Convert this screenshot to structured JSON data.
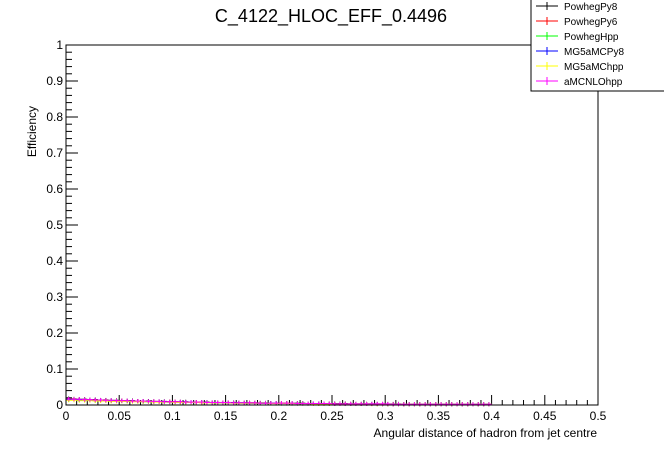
{
  "chart_data": {
    "type": "line",
    "title": "C_4122_HLOC_EFF_0.4496",
    "xlabel": "Angular distance of hadron from jet centre",
    "ylabel": "Efficiency",
    "xlim": [
      0,
      0.5
    ],
    "ylim": [
      0,
      1
    ],
    "x_ticks": [
      "0",
      "0.05",
      "0.1",
      "0.15",
      "0.2",
      "0.25",
      "0.3",
      "0.35",
      "0.4",
      "0.45",
      "0.5"
    ],
    "y_ticks": [
      "0",
      "0.1",
      "0.2",
      "0.3",
      "0.4",
      "0.5",
      "0.6",
      "0.7",
      "0.8",
      "0.9",
      "1"
    ],
    "grid": false,
    "legend_position": "top-right",
    "x": [
      0.0025,
      0.0075,
      0.0125,
      0.0175,
      0.0225,
      0.0275,
      0.0325,
      0.0375,
      0.0425,
      0.0475,
      0.0525,
      0.0575,
      0.0625,
      0.0675,
      0.0725,
      0.0775,
      0.0825,
      0.0875,
      0.0925,
      0.0975,
      0.1025,
      0.1075,
      0.1125,
      0.1175,
      0.1225,
      0.1275,
      0.1325,
      0.1375,
      0.1425,
      0.1475,
      0.1525,
      0.1575,
      0.1625,
      0.1675,
      0.1725,
      0.1775,
      0.1825,
      0.1875,
      0.1925,
      0.1975,
      0.2025,
      0.2075,
      0.2125,
      0.2175,
      0.2225,
      0.2275,
      0.2325,
      0.2375,
      0.2425,
      0.2475,
      0.2525,
      0.2575,
      0.2625,
      0.2675,
      0.2725,
      0.2775,
      0.2825,
      0.2875,
      0.2925,
      0.2975,
      0.3025,
      0.3075,
      0.3125,
      0.3175,
      0.3225,
      0.3275,
      0.3325,
      0.3375,
      0.3425,
      0.3475,
      0.3525,
      0.3575,
      0.3625,
      0.3675,
      0.3725,
      0.3775,
      0.3825,
      0.3875,
      0.3925,
      0.3975
    ],
    "series": [
      {
        "name": "PowhegPy8",
        "color": "#000000",
        "values": [
          0.018,
          0.017,
          0.016,
          0.016,
          0.015,
          0.015,
          0.014,
          0.014,
          0.013,
          0.013,
          0.012,
          0.012,
          0.012,
          0.011,
          0.011,
          0.011,
          0.01,
          0.01,
          0.01,
          0.009,
          0.009,
          0.009,
          0.009,
          0.008,
          0.008,
          0.008,
          0.008,
          0.007,
          0.007,
          0.007,
          0.007,
          0.007,
          0.006,
          0.006,
          0.006,
          0.006,
          0.006,
          0.006,
          0.005,
          0.005,
          0.005,
          0.005,
          0.005,
          0.005,
          0.005,
          0.004,
          0.004,
          0.004,
          0.004,
          0.004,
          0.004,
          0.004,
          0.004,
          0.003,
          0.003,
          0.003,
          0.003,
          0.003,
          0.003,
          0.003,
          0.003,
          0.003,
          0.003,
          0.002,
          0.002,
          0.002,
          0.002,
          0.002,
          0.002,
          0.002,
          0.002,
          0.002,
          0.002,
          0.002,
          0.002,
          0.002,
          0.002,
          0.002,
          0.002,
          0.002
        ]
      },
      {
        "name": "PowhegPy6",
        "color": "#ff0000",
        "values": [
          0.016,
          0.016,
          0.015,
          0.015,
          0.014,
          0.014,
          0.013,
          0.013,
          0.012,
          0.012,
          0.012,
          0.011,
          0.011,
          0.011,
          0.01,
          0.01,
          0.01,
          0.009,
          0.009,
          0.009,
          0.009,
          0.008,
          0.008,
          0.008,
          0.008,
          0.007,
          0.007,
          0.007,
          0.007,
          0.007,
          0.006,
          0.006,
          0.006,
          0.006,
          0.006,
          0.006,
          0.005,
          0.005,
          0.005,
          0.005,
          0.005,
          0.005,
          0.004,
          0.004,
          0.004,
          0.004,
          0.004,
          0.004,
          0.004,
          0.004,
          0.003,
          0.003,
          0.003,
          0.003,
          0.003,
          0.003,
          0.003,
          0.003,
          0.003,
          0.003,
          0.002,
          0.002,
          0.002,
          0.002,
          0.002,
          0.002,
          0.002,
          0.002,
          0.002,
          0.002,
          0.002,
          0.002,
          0.002,
          0.002,
          0.002,
          0.002,
          0.002,
          0.002,
          0.002,
          0.002
        ]
      },
      {
        "name": "PowhegHpp",
        "color": "#00ff00",
        "values": [
          0.014,
          0.014,
          0.013,
          0.013,
          0.013,
          0.012,
          0.012,
          0.012,
          0.011,
          0.011,
          0.011,
          0.01,
          0.01,
          0.01,
          0.009,
          0.009,
          0.009,
          0.009,
          0.008,
          0.008,
          0.008,
          0.008,
          0.007,
          0.007,
          0.007,
          0.007,
          0.007,
          0.006,
          0.006,
          0.006,
          0.006,
          0.006,
          0.005,
          0.005,
          0.005,
          0.005,
          0.005,
          0.005,
          0.005,
          0.004,
          0.004,
          0.004,
          0.004,
          0.004,
          0.004,
          0.004,
          0.004,
          0.003,
          0.003,
          0.003,
          0.003,
          0.003,
          0.003,
          0.003,
          0.003,
          0.003,
          0.003,
          0.003,
          0.002,
          0.002,
          0.002,
          0.002,
          0.002,
          0.002,
          0.002,
          0.002,
          0.002,
          0.002,
          0.002,
          0.002,
          0.002,
          0.002,
          0.002,
          0.002,
          0.002,
          0.002,
          0.002,
          0.002,
          0.002,
          0.002
        ]
      },
      {
        "name": "MG5aMCPy8",
        "color": "#0000ff",
        "values": [
          0.015,
          0.015,
          0.014,
          0.014,
          0.013,
          0.013,
          0.013,
          0.012,
          0.012,
          0.011,
          0.011,
          0.011,
          0.01,
          0.01,
          0.01,
          0.01,
          0.009,
          0.009,
          0.009,
          0.008,
          0.008,
          0.008,
          0.008,
          0.008,
          0.007,
          0.007,
          0.007,
          0.007,
          0.006,
          0.006,
          0.006,
          0.006,
          0.006,
          0.006,
          0.005,
          0.005,
          0.005,
          0.005,
          0.005,
          0.005,
          0.004,
          0.004,
          0.004,
          0.004,
          0.004,
          0.004,
          0.004,
          0.004,
          0.003,
          0.003,
          0.003,
          0.003,
          0.003,
          0.003,
          0.003,
          0.003,
          0.003,
          0.003,
          0.003,
          0.002,
          0.002,
          0.002,
          0.002,
          0.002,
          0.002,
          0.002,
          0.002,
          0.002,
          0.002,
          0.002,
          0.002,
          0.002,
          0.002,
          0.002,
          0.002,
          0.002,
          0.002,
          0.002,
          0.002,
          0.002
        ]
      },
      {
        "name": "MG5aMChpp",
        "color": "#ffff00",
        "values": [
          0.013,
          0.013,
          0.012,
          0.012,
          0.012,
          0.011,
          0.011,
          0.011,
          0.01,
          0.01,
          0.01,
          0.01,
          0.009,
          0.009,
          0.009,
          0.009,
          0.008,
          0.008,
          0.008,
          0.008,
          0.007,
          0.007,
          0.007,
          0.007,
          0.007,
          0.006,
          0.006,
          0.006,
          0.006,
          0.006,
          0.006,
          0.005,
          0.005,
          0.005,
          0.005,
          0.005,
          0.005,
          0.005,
          0.004,
          0.004,
          0.004,
          0.004,
          0.004,
          0.004,
          0.004,
          0.004,
          0.003,
          0.003,
          0.003,
          0.003,
          0.003,
          0.003,
          0.003,
          0.003,
          0.003,
          0.003,
          0.003,
          0.002,
          0.002,
          0.002,
          0.002,
          0.002,
          0.002,
          0.002,
          0.002,
          0.002,
          0.002,
          0.002,
          0.002,
          0.002,
          0.002,
          0.002,
          0.002,
          0.002,
          0.002,
          0.002,
          0.002,
          0.002,
          0.002,
          0.002
        ]
      },
      {
        "name": "aMCNLOhpp",
        "color": "#ff00ff",
        "values": [
          0.017,
          0.016,
          0.016,
          0.015,
          0.015,
          0.014,
          0.014,
          0.013,
          0.013,
          0.012,
          0.012,
          0.012,
          0.011,
          0.011,
          0.011,
          0.01,
          0.01,
          0.01,
          0.009,
          0.009,
          0.009,
          0.009,
          0.008,
          0.008,
          0.008,
          0.008,
          0.007,
          0.007,
          0.007,
          0.007,
          0.007,
          0.006,
          0.006,
          0.006,
          0.006,
          0.006,
          0.005,
          0.005,
          0.005,
          0.005,
          0.005,
          0.005,
          0.005,
          0.004,
          0.004,
          0.004,
          0.004,
          0.004,
          0.004,
          0.004,
          0.003,
          0.003,
          0.003,
          0.003,
          0.003,
          0.003,
          0.003,
          0.003,
          0.003,
          0.003,
          0.003,
          0.002,
          0.002,
          0.002,
          0.002,
          0.002,
          0.002,
          0.002,
          0.002,
          0.002,
          0.002,
          0.002,
          0.002,
          0.002,
          0.002,
          0.002,
          0.002,
          0.002,
          0.002,
          0.002
        ]
      }
    ]
  }
}
